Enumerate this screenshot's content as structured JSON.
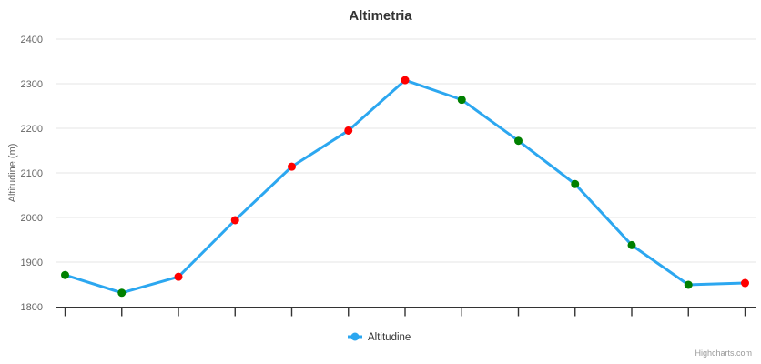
{
  "title": "Altimetria",
  "credits": {
    "label": "Highcharts.com"
  },
  "legend": {
    "label": "Altitudine",
    "position": "bottom-center"
  },
  "colors": {
    "line": "#2ca7f0",
    "marker_red": "#ff0000",
    "marker_green": "#008000",
    "grid": "#e6e6e6",
    "axis": "#333333",
    "axis_label": "#666666",
    "title_text": "#333333",
    "credits_text": "#999999",
    "background": "#ffffff"
  },
  "chart_data": {
    "type": "line",
    "title": "Altimetria",
    "xlabel": "",
    "ylabel": "Altitudine (m)",
    "ylim": [
      1800,
      2400
    ],
    "yticks": [
      1800,
      1900,
      2000,
      2100,
      2200,
      2300,
      2400
    ],
    "grid": true,
    "x_tick_count": 13,
    "x_tick_labels_visible": false,
    "legend_position": "bottom",
    "series": [
      {
        "name": "Altitudine",
        "values": [
          1871,
          1831,
          1867,
          1994,
          2114,
          2195,
          2308,
          2264,
          2172,
          2075,
          1938,
          1849,
          1853
        ],
        "point_colors": [
          "#008000",
          "#008000",
          "#ff0000",
          "#ff0000",
          "#ff0000",
          "#ff0000",
          "#ff0000",
          "#008000",
          "#008000",
          "#008000",
          "#008000",
          "#008000",
          "#ff0000"
        ],
        "line_color": "#2ca7f0"
      }
    ]
  }
}
